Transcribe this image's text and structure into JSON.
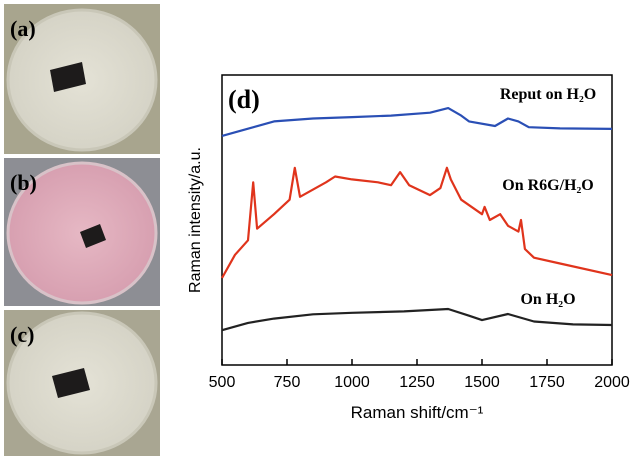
{
  "panels": [
    "(a)",
    "(b)",
    "(c)"
  ],
  "chart_data": {
    "type": "line",
    "annotation": "(d)",
    "x_label": "Raman shift/cm⁻¹",
    "y_label": "Raman intensity/a.u.",
    "xlim": [
      500,
      2000
    ],
    "xticks": [
      500,
      750,
      1000,
      1250,
      1500,
      1750,
      2000
    ],
    "ylim": [
      0,
      100
    ],
    "series": [
      {
        "name": "Reput on H₂O",
        "color": "#2a4fb5",
        "x": [
          500,
          600,
          700,
          850,
          1000,
          1150,
          1300,
          1370,
          1420,
          1450,
          1550,
          1600,
          1640,
          1680,
          1800,
          2000
        ],
        "values": [
          79,
          81.5,
          84,
          85,
          85.5,
          86,
          87,
          88.6,
          86,
          84,
          82.4,
          85,
          84,
          82,
          81.6,
          81.4
        ]
      },
      {
        "name": "On  R6G/H₂O",
        "color": "#e0341c",
        "x": [
          500,
          550,
          600,
          620,
          635,
          700,
          760,
          780,
          800,
          900,
          935,
          1000,
          1100,
          1150,
          1185,
          1220,
          1300,
          1340,
          1365,
          1380,
          1420,
          1500,
          1510,
          1530,
          1570,
          1600,
          1640,
          1650,
          1665,
          1700,
          1800,
          2000
        ],
        "values": [
          30,
          38,
          43,
          63,
          47,
          52,
          57,
          68,
          58,
          63,
          65,
          64,
          63,
          62,
          66.5,
          62,
          58.6,
          61,
          68,
          64,
          57,
          52,
          54.5,
          50,
          52,
          48,
          46,
          50,
          40,
          37,
          35,
          31
        ]
      },
      {
        "name": "On H₂O",
        "color": "#222222",
        "x": [
          500,
          600,
          700,
          850,
          1000,
          1200,
          1370,
          1450,
          1500,
          1600,
          1700,
          1850,
          2000
        ],
        "values": [
          12,
          14.5,
          16,
          17.5,
          18,
          18.5,
          19.3,
          17,
          15.5,
          17.6,
          15,
          14,
          13.8
        ]
      }
    ]
  }
}
